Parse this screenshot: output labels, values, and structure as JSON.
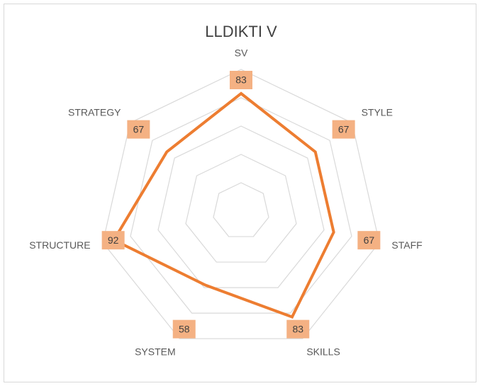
{
  "chart_data": {
    "type": "radar",
    "title": "LLDIKTI V",
    "categories": [
      "SV",
      "STYLE",
      "STAFF",
      "SKILLS",
      "SYSTEM",
      "STRUCTURE",
      "STRATEGY"
    ],
    "series": [
      {
        "name": "LLDIKTI V",
        "color": "#ed7d31",
        "values": [
          83,
          67,
          67,
          83,
          58,
          92,
          67
        ]
      }
    ],
    "ylim": [
      0,
      100
    ],
    "yticks": [
      20,
      40,
      60,
      80,
      100
    ],
    "grid": true,
    "label_color": "#f4b183"
  }
}
